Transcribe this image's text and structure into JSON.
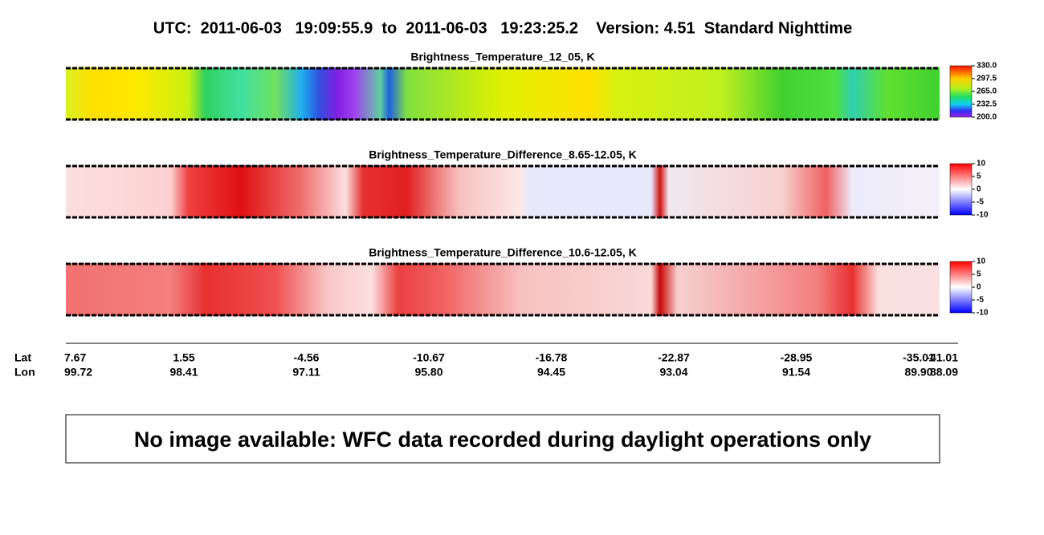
{
  "header": {
    "title": "UTC:  2011-06-03   19:09:55.9  to  2011-06-03   19:23:25.2    Version: 4.51  Standard Nighttime"
  },
  "panels": [
    {
      "title": "Brightness_Temperature_12_05, K",
      "colorbar_labels": [
        "330.0",
        "297.5",
        "265.0",
        "232.5",
        "200.0"
      ]
    },
    {
      "title": "Brightness_Temperature_Difference_8.65-12.05, K",
      "colorbar_labels": [
        "10",
        "5",
        "0",
        "-5",
        "-10"
      ]
    },
    {
      "title": "Brightness_Temperature_Difference_10.6-12.05, K",
      "colorbar_labels": [
        "10",
        "5",
        "0",
        "-5",
        "-10"
      ]
    }
  ],
  "axis": {
    "lat_label": "Lat",
    "lon_label": "Lon",
    "lat": [
      "7.67",
      "1.55",
      "-4.56",
      "-10.67",
      "-16.78",
      "-22.87",
      "-28.95",
      "-35.01",
      "-41.01"
    ],
    "lon": [
      "99.72",
      "98.41",
      "97.11",
      "95.80",
      "94.45",
      "93.04",
      "91.54",
      "89.90",
      "88.09"
    ]
  },
  "message": "No image available: WFC data recorded during daylight operations only"
}
